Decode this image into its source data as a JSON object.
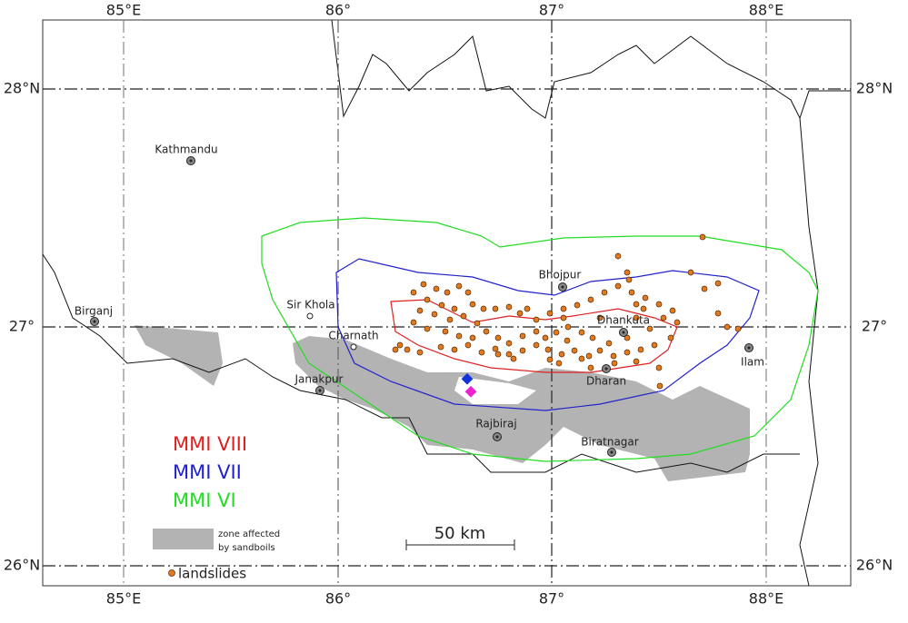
{
  "map": {
    "top_labels": [
      "85°E",
      "86°",
      "87°",
      "88°E"
    ],
    "bottom_labels": [
      "85°E",
      "86°",
      "87°",
      "88°E"
    ],
    "left_labels": [
      "28°N",
      "27°",
      "26°N"
    ],
    "right_labels": [
      "28°N",
      "27°",
      "26°N"
    ],
    "places": [
      "Kathmandu",
      "Birganj",
      "Sir Khola",
      "Charnath",
      "Janakpur",
      "Bhojpur",
      "Dhankuta",
      "Ilam",
      "Dharan",
      "Rajbiraj",
      "Biratnagar"
    ],
    "scale_bar": "50 km"
  },
  "legend": {
    "mmi": [
      "MMI VIII",
      "MMI VII",
      "MMI VI"
    ],
    "sandboils": [
      "zone affected",
      "by sandboils"
    ],
    "landslides": "landslides"
  }
}
